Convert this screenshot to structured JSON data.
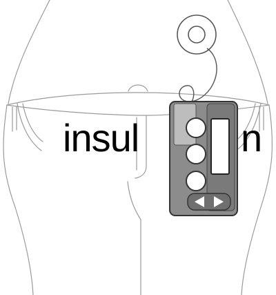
{
  "logo": {
    "word_left": "insul",
    "word_right": "n",
    "icon": "insulin-pump-icon"
  },
  "colors": {
    "outline": "#9a9a9a",
    "pump_body": "#8c8c8c",
    "pump_light": "#bdbdbd",
    "pump_dark": "#4a4a4a",
    "text": "#000000"
  }
}
